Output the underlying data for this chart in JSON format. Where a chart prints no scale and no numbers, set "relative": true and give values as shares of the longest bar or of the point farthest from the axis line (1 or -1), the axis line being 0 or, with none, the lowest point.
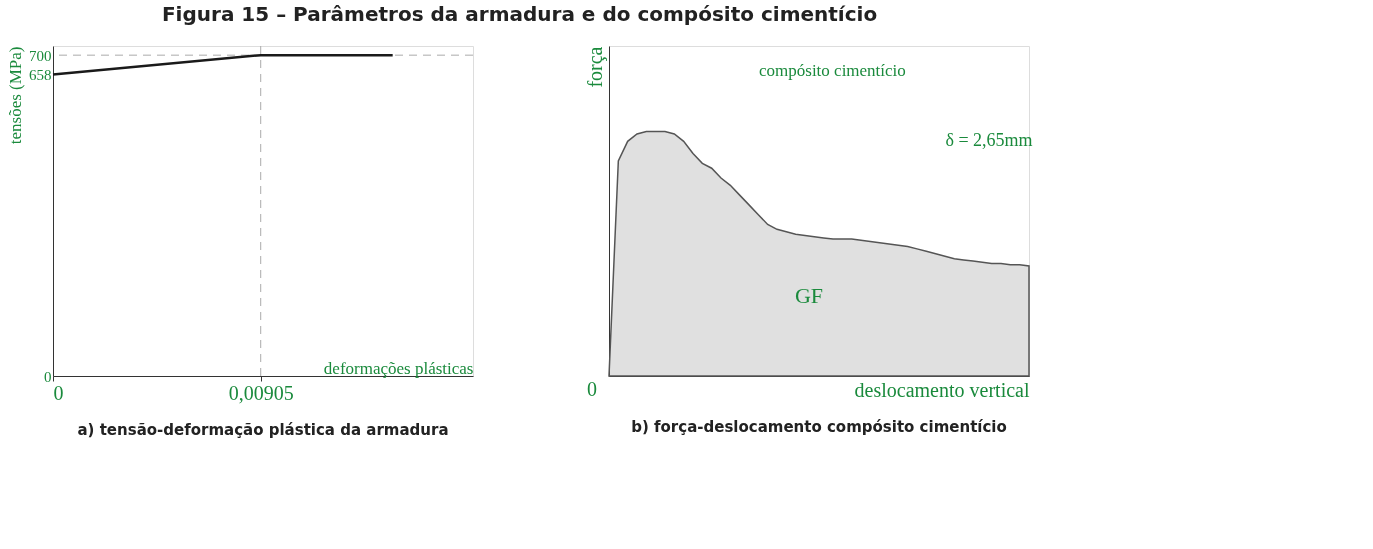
{
  "chart_data": [
    {
      "type": "line",
      "title": "Figura 15 – Parâmetros da armadura e do compósito cimentício",
      "xlabel": "deformações plásticas",
      "ylabel": "tensões (MPa)",
      "x": [
        0,
        0.00905,
        0.0148
      ],
      "series": [
        {
          "color": "#1a1a1a",
          "values": [
            658,
            700,
            700
          ]
        }
      ],
      "xlim": [
        0,
        0.0183
      ],
      "ylim": [
        0,
        720
      ],
      "xticks": [
        0,
        {
          "value": 0.00905,
          "label": "0,00905"
        }
      ],
      "yticks": [
        0,
        658,
        700
      ],
      "ref_lines": [
        {
          "axis": "y",
          "value": 700,
          "color": "#aaaaaa",
          "line_style": "dashed"
        },
        {
          "axis": "x",
          "value": 0.00905,
          "color": "#aaaaaa",
          "line_style": "dashed"
        }
      ],
      "annotations": [
        "a) tensão-deformação plástica da armadura"
      ],
      "grid": false,
      "marker": "none",
      "line_style": "solid"
    },
    {
      "type": "area",
      "relative": true,
      "xlabel": "deslocamento vertical",
      "ylabel": "força",
      "categories": [
        null,
        null,
        null,
        null,
        null,
        null,
        null,
        null,
        null,
        null,
        null,
        null,
        null,
        null,
        null,
        null,
        null,
        null,
        null,
        null,
        null,
        null,
        null,
        null,
        null,
        null,
        null,
        null,
        null,
        null,
        null,
        null,
        null,
        null,
        null,
        null,
        null,
        null,
        null,
        null,
        null,
        null,
        null,
        null,
        null,
        null
      ],
      "series": [
        {
          "color": "#555555",
          "values": [
            0,
            0.88,
            0.96,
            0.99,
            1.0,
            1.0,
            1.0,
            0.99,
            0.96,
            0.91,
            0.87,
            0.85,
            0.81,
            0.78,
            0.74,
            0.7,
            0.66,
            0.62,
            0.6,
            0.59,
            0.58,
            0.575,
            0.57,
            0.565,
            0.56,
            0.56,
            0.56,
            0.555,
            0.55,
            0.545,
            0.54,
            0.535,
            0.53,
            0.52,
            0.51,
            0.5,
            0.49,
            0.48,
            0.475,
            0.47,
            0.465,
            0.46,
            0.46,
            0.455,
            0.455,
            0.45
          ]
        }
      ],
      "annotations": [
        "b) força-deslocamento compósito cimentício",
        "0",
        "compósito cimentício",
        "δ = 2,65mm",
        "GF"
      ]
    }
  ]
}
